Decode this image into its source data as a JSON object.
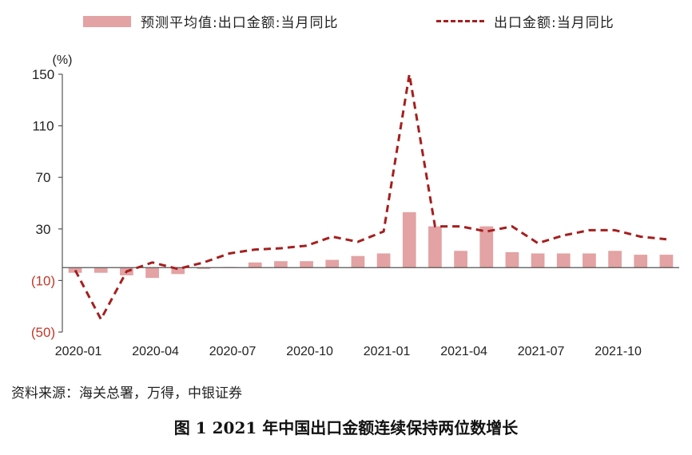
{
  "legend": {
    "bar_label": "预测平均值:出口金额:当月同比",
    "line_label": "出口金额:当月同比"
  },
  "source": "资料来源：海关总署，万得，中银证券",
  "caption": "图 1    2021 年中国出口金额连续保持两位数增长",
  "chart_data": {
    "type": "bar+line",
    "unit_label": "(%)",
    "y_ticks": [
      "150",
      "110",
      "70",
      "30",
      "(10)",
      "(50)"
    ],
    "y_tick_values": [
      150,
      110,
      70,
      30,
      -10,
      -50
    ],
    "ylim": [
      -50,
      150
    ],
    "x_tick_labels": [
      "2020-01",
      "2020-04",
      "2020-07",
      "2020-10",
      "2021-01",
      "2021-04",
      "2021-07",
      "2021-10"
    ],
    "x_tick_indices": [
      0,
      3,
      6,
      9,
      12,
      15,
      18,
      21
    ],
    "categories": [
      "2020-01",
      "2020-02",
      "2020-03",
      "2020-04",
      "2020-05",
      "2020-06",
      "2020-07",
      "2020-08",
      "2020-09",
      "2020-10",
      "2020-11",
      "2020-12",
      "2021-01",
      "2021-02",
      "2021-03",
      "2021-04",
      "2021-05",
      "2021-06",
      "2021-07",
      "2021-08",
      "2021-09",
      "2021-10",
      "2021-11",
      "2021-12"
    ],
    "series": [
      {
        "name": "预测平均值:出口金额:当月同比",
        "type": "bar",
        "color": "#e3a2a3",
        "values": [
          -4,
          -4,
          -6,
          -8,
          -5,
          -1,
          0.5,
          4,
          5,
          5,
          6,
          9,
          11,
          43,
          32,
          13,
          32,
          12,
          11,
          11,
          11,
          13,
          10,
          10
        ]
      },
      {
        "name": "出口金额:当月同比",
        "type": "line",
        "color": "#a51f1f",
        "values": [
          -2,
          -40,
          -3,
          4,
          -1,
          4,
          11,
          14,
          15,
          17,
          24,
          20,
          28,
          150,
          32,
          32,
          28,
          32,
          19,
          25,
          29,
          29,
          24,
          22
        ]
      }
    ],
    "negative_tick_color": "#c0392b"
  }
}
